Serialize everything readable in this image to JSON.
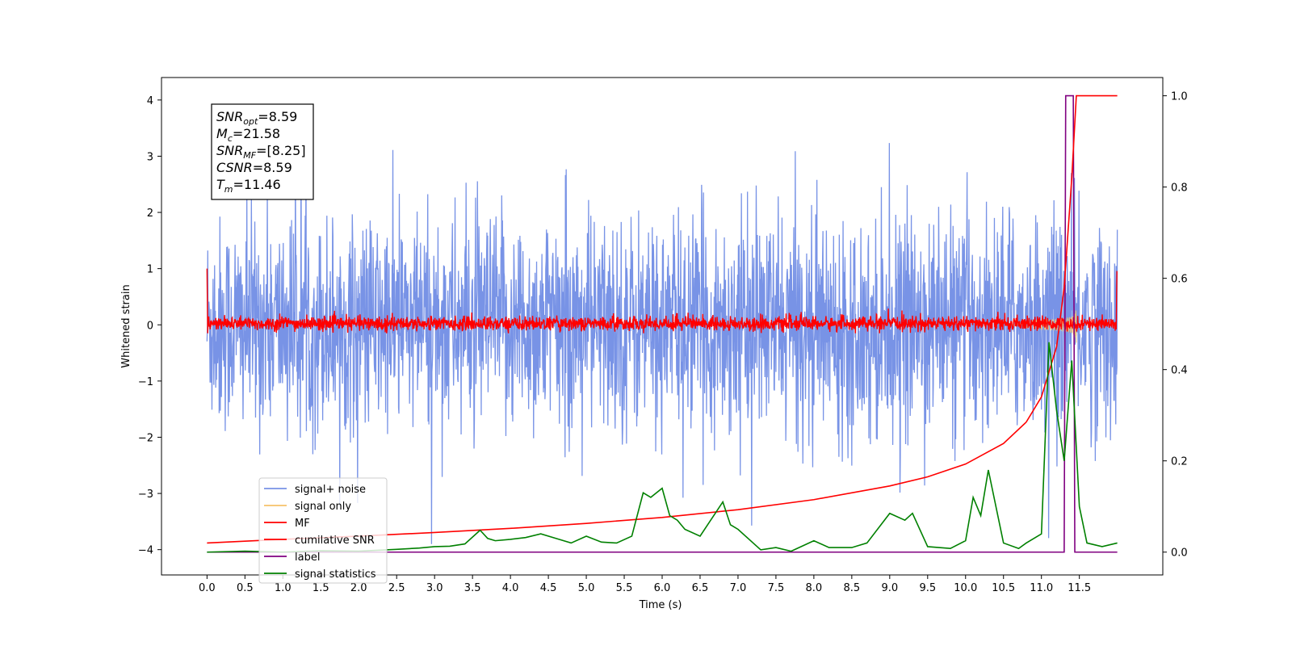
{
  "chart_data": {
    "type": "line",
    "xlabel": "Time (s)",
    "ylabel": "Whitened strain",
    "xlim": [
      -0.6,
      12.6
    ],
    "ylim": [
      -4.45,
      4.4
    ],
    "y2lim": [
      -0.05,
      1.04
    ],
    "xticks": [
      "0.0",
      "0.5",
      "1.0",
      "1.5",
      "2.0",
      "2.5",
      "3.0",
      "3.5",
      "4.0",
      "4.5",
      "5.0",
      "5.5",
      "6.0",
      "6.5",
      "7.0",
      "7.5",
      "8.0",
      "8.5",
      "9.0",
      "9.5",
      "10.0",
      "10.5",
      "11.0",
      "11.5"
    ],
    "yticks": [
      -4,
      -3,
      -2,
      -1,
      0,
      1,
      2,
      3,
      4
    ],
    "yticks_labels": [
      "−4",
      "−3",
      "−2",
      "−1",
      "0",
      "1",
      "2",
      "3",
      "4"
    ],
    "y2ticks": [
      "0.0",
      "0.2",
      "0.4",
      "0.6",
      "0.8",
      "1.0"
    ],
    "grid": false,
    "legend_placement": "lower-left",
    "info_box": {
      "lines": [
        {
          "sym": "SNR",
          "sub": "opt",
          "val": "=8.59"
        },
        {
          "sym": "M",
          "sub": "c",
          "val": "=21.58"
        },
        {
          "sym": "SNR",
          "sub": "MF",
          "val": "=[8.25]"
        },
        {
          "sym": "CSNR",
          "sub": "",
          "val": "=8.59"
        },
        {
          "sym": "T",
          "sub": "m",
          "val": "=11.46"
        }
      ]
    },
    "series": [
      {
        "name": "signal+ noise",
        "color": "#7893e6",
        "kind": "noise",
        "amplitude_band": [
          -2.1,
          2.1
        ],
        "x_range": [
          0.0,
          12.0
        ]
      },
      {
        "name": "signal only",
        "color": "#f6c36a",
        "kind": "chirp",
        "merger_time": 11.46
      },
      {
        "name": "MF",
        "color": "#ff0000",
        "kind": "noise",
        "amplitude_band": [
          -0.12,
          0.22
        ]
      },
      {
        "name": "cumilative SNR",
        "color": "#ff0000",
        "axis": "right",
        "x": [
          0.0,
          0.5,
          1.0,
          2.0,
          3.0,
          4.0,
          5.0,
          6.0,
          7.0,
          8.0,
          9.0,
          9.5,
          10.0,
          10.5,
          10.8,
          11.0,
          11.2,
          11.3,
          11.4,
          11.46,
          11.5,
          12.0
        ],
        "values": [
          0.02,
          0.024,
          0.028,
          0.035,
          0.043,
          0.052,
          0.063,
          0.076,
          0.093,
          0.115,
          0.145,
          0.165,
          0.193,
          0.238,
          0.285,
          0.34,
          0.45,
          0.58,
          0.82,
          1.0,
          1.0,
          1.0
        ]
      },
      {
        "name": "label",
        "color": "#800080",
        "axis": "right",
        "x": [
          0.0,
          11.3,
          11.32,
          11.42,
          11.44,
          12.0
        ],
        "values": [
          0.0,
          0.0,
          1.0,
          1.0,
          0.0,
          0.0
        ]
      },
      {
        "name": "signal statistics",
        "color": "#008000",
        "axis": "right",
        "x": [
          0.0,
          0.5,
          1.0,
          1.5,
          2.0,
          2.5,
          2.8,
          3.0,
          3.2,
          3.4,
          3.6,
          3.7,
          3.8,
          4.0,
          4.2,
          4.4,
          4.6,
          4.8,
          5.0,
          5.2,
          5.4,
          5.6,
          5.75,
          5.85,
          6.0,
          6.1,
          6.2,
          6.3,
          6.5,
          6.6,
          6.8,
          6.9,
          7.0,
          7.3,
          7.5,
          7.7,
          8.0,
          8.2,
          8.5,
          8.7,
          9.0,
          9.2,
          9.3,
          9.5,
          9.8,
          10.0,
          10.1,
          10.2,
          10.3,
          10.5,
          10.7,
          10.8,
          11.0,
          11.1,
          11.2,
          11.3,
          11.4,
          11.5,
          11.6,
          11.8,
          12.0
        ],
        "values": [
          0.0,
          0.002,
          0.0,
          0.003,
          0.002,
          0.006,
          0.009,
          0.012,
          0.013,
          0.018,
          0.048,
          0.03,
          0.025,
          0.028,
          0.032,
          0.04,
          0.03,
          0.02,
          0.035,
          0.022,
          0.02,
          0.035,
          0.13,
          0.12,
          0.14,
          0.08,
          0.07,
          0.05,
          0.035,
          0.06,
          0.11,
          0.06,
          0.05,
          0.005,
          0.01,
          0.002,
          0.025,
          0.01,
          0.01,
          0.02,
          0.085,
          0.07,
          0.085,
          0.012,
          0.008,
          0.025,
          0.12,
          0.08,
          0.18,
          0.02,
          0.008,
          0.02,
          0.04,
          0.46,
          0.31,
          0.2,
          0.42,
          0.1,
          0.02,
          0.012,
          0.02
        ]
      }
    ]
  }
}
